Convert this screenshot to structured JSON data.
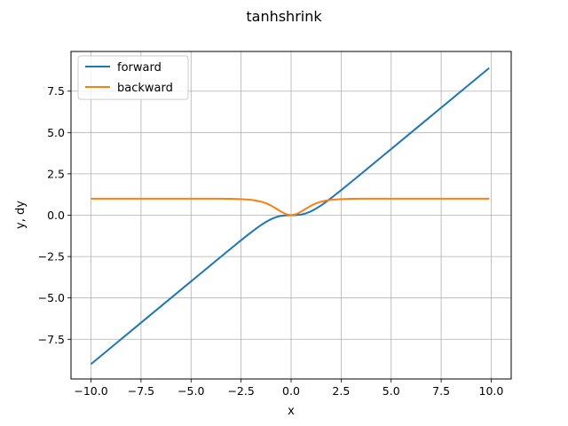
{
  "chart_data": {
    "type": "line",
    "title": "tanhshrink",
    "xlabel": "x",
    "ylabel": "y, dy",
    "xlim": [
      -11.0,
      11.0
    ],
    "ylim": [
      -9.9,
      9.9
    ],
    "xticks": [
      -10.0,
      -7.5,
      -5.0,
      -2.5,
      0.0,
      2.5,
      5.0,
      7.5,
      10.0
    ],
    "xtick_labels": [
      "−10.0",
      "−7.5",
      "−5.0",
      "−2.5",
      "0.0",
      "2.5",
      "5.0",
      "7.5",
      "10.0"
    ],
    "yticks": [
      -7.5,
      -5.0,
      -2.5,
      0.0,
      2.5,
      5.0,
      7.5
    ],
    "ytick_labels": [
      "−7.5",
      "−5.0",
      "−2.5",
      "0.0",
      "2.5",
      "5.0",
      "7.5"
    ],
    "grid": true,
    "legend": "upper-left",
    "x": [
      -10.0,
      -9.0,
      -8.0,
      -7.0,
      -6.0,
      -5.0,
      -4.5,
      -4.0,
      -3.5,
      -3.0,
      -2.5,
      -2.0,
      -1.75,
      -1.5,
      -1.25,
      -1.0,
      -0.75,
      -0.5,
      -0.25,
      0.0,
      0.25,
      0.5,
      0.75,
      1.0,
      1.25,
      1.5,
      1.75,
      2.0,
      2.5,
      3.0,
      3.5,
      4.0,
      4.5,
      5.0,
      6.0,
      7.0,
      8.0,
      9.0,
      9.9
    ],
    "series": [
      {
        "name": "forward",
        "color": "#1f77b4",
        "values": [
          -9.0,
          -8.0,
          -7.0,
          -6.0,
          -5.0,
          -4.0009,
          -3.5025,
          -3.0013,
          -2.5018,
          -2.005,
          -1.5134,
          -1.036,
          -0.8089,
          -0.5949,
          -0.4019,
          -0.2384,
          -0.1148,
          -0.0379,
          -0.0051,
          0.0,
          0.0051,
          0.0379,
          0.1148,
          0.2384,
          0.4019,
          0.5949,
          0.8089,
          1.036,
          1.5134,
          2.005,
          2.5018,
          3.0013,
          3.5025,
          4.0009,
          5.0,
          6.0,
          7.0,
          8.0,
          8.9
        ]
      },
      {
        "name": "backward",
        "color": "#ff7f0e",
        "values": [
          1.0,
          1.0,
          1.0,
          1.0,
          1.0,
          0.9998,
          0.9995,
          0.9987,
          0.9964,
          0.9901,
          0.9732,
          0.9293,
          0.8866,
          0.8193,
          0.7193,
          0.58,
          0.4034,
          0.2135,
          0.06,
          0.0,
          0.06,
          0.2135,
          0.4034,
          0.58,
          0.7193,
          0.8193,
          0.8866,
          0.9293,
          0.9732,
          0.9901,
          0.9964,
          0.9987,
          0.9995,
          0.9998,
          1.0,
          1.0,
          1.0,
          1.0,
          1.0
        ]
      }
    ]
  }
}
